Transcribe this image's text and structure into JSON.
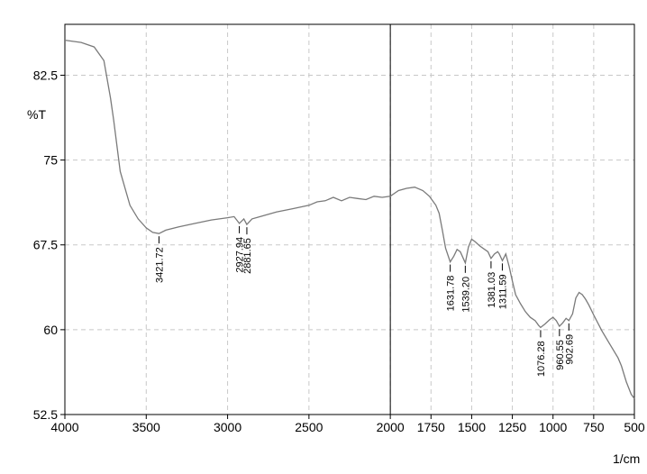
{
  "chart_data": {
    "type": "line",
    "ylabel": "%T",
    "xlabel": "1/cm",
    "xlim": [
      4000,
      500
    ],
    "ylim": [
      52.5,
      87
    ],
    "x_ticks": [
      4000,
      3500,
      3000,
      2500,
      2000,
      1750,
      1500,
      1250,
      1000,
      750,
      500
    ],
    "x_tick_labels": [
      "4000",
      "3500",
      "3000",
      "2500",
      "2000",
      "1750",
      "1500",
      "1250",
      "1000",
      "750",
      "500"
    ],
    "y_ticks": [
      52.5,
      60,
      67.5,
      75,
      82.5
    ],
    "y_tick_labels": [
      "52.5",
      "60",
      "67.5",
      "75",
      "82.5"
    ],
    "grid": true,
    "divider_x": 2000,
    "series": [
      {
        "x": [
          4000,
          3900,
          3820,
          3760,
          3720,
          3700,
          3660,
          3600,
          3550,
          3500,
          3460,
          3421.72,
          3380,
          3300,
          3200,
          3100,
          3000,
          2960,
          2927.94,
          2900,
          2881.65,
          2850,
          2800,
          2700,
          2600,
          2500,
          2450,
          2400,
          2350,
          2300,
          2250,
          2200,
          2150,
          2100,
          2050,
          2000,
          1950,
          1900,
          1850,
          1800,
          1760,
          1720,
          1700,
          1680,
          1660,
          1631.78,
          1610,
          1590,
          1570,
          1539.2,
          1520,
          1500,
          1480,
          1450,
          1420,
          1400,
          1381.03,
          1360,
          1340,
          1330,
          1311.59,
          1290,
          1270,
          1250,
          1230,
          1200,
          1170,
          1140,
          1110,
          1090,
          1076.28,
          1050,
          1020,
          1000,
          980,
          960.55,
          940,
          920,
          902.69,
          880,
          860,
          840,
          820,
          800,
          780,
          750,
          700,
          650,
          600,
          580,
          550,
          520,
          500
        ],
        "y": [
          85.6,
          85.4,
          85,
          83.8,
          80.5,
          78.5,
          74,
          71,
          69.8,
          69,
          68.6,
          68.5,
          68.8,
          69.1,
          69.4,
          69.7,
          69.9,
          70,
          69.4,
          69.8,
          69.3,
          69.8,
          70,
          70.4,
          70.7,
          71,
          71.3,
          71.4,
          71.7,
          71.4,
          71.7,
          71.6,
          71.5,
          71.8,
          71.7,
          71.8,
          72.3,
          72.5,
          72.6,
          72.3,
          71.8,
          71,
          70.3,
          68.8,
          67.2,
          66,
          66.5,
          67.1,
          66.9,
          65.9,
          67.3,
          68,
          67.8,
          67.4,
          67.1,
          66.9,
          66.3,
          66.7,
          66.9,
          66.7,
          66.1,
          66.7,
          65.6,
          64.3,
          63.1,
          62.3,
          61.6,
          61.1,
          60.8,
          60.4,
          60.2,
          60.5,
          60.9,
          61.1,
          60.8,
          60.3,
          60.6,
          61,
          60.8,
          61.4,
          62.8,
          63.3,
          63.1,
          62.7,
          62.2,
          61.3,
          59.9,
          58.7,
          57.5,
          56.8,
          55.4,
          54.3,
          53.9
        ]
      }
    ],
    "peaks": [
      {
        "x": 3421.72,
        "y": 68.5,
        "label": "3421.72"
      },
      {
        "x": 2927.94,
        "y": 69.4,
        "label": "2927.94"
      },
      {
        "x": 2881.65,
        "y": 69.3,
        "label": "2881.65"
      },
      {
        "x": 1631.78,
        "y": 66.0,
        "label": "1631.78"
      },
      {
        "x": 1539.2,
        "y": 65.9,
        "label": "1539.20"
      },
      {
        "x": 1381.03,
        "y": 66.3,
        "label": "1381.03"
      },
      {
        "x": 1311.59,
        "y": 66.1,
        "label": "1311.59"
      },
      {
        "x": 1076.28,
        "y": 60.2,
        "label": "1076.28"
      },
      {
        "x": 960.55,
        "y": 60.3,
        "label": "960.55"
      },
      {
        "x": 902.69,
        "y": 60.8,
        "label": "902.69"
      }
    ],
    "colors": {
      "line": "#7a7a7a",
      "grid": "#c8c8c8",
      "frame": "#000000"
    }
  }
}
